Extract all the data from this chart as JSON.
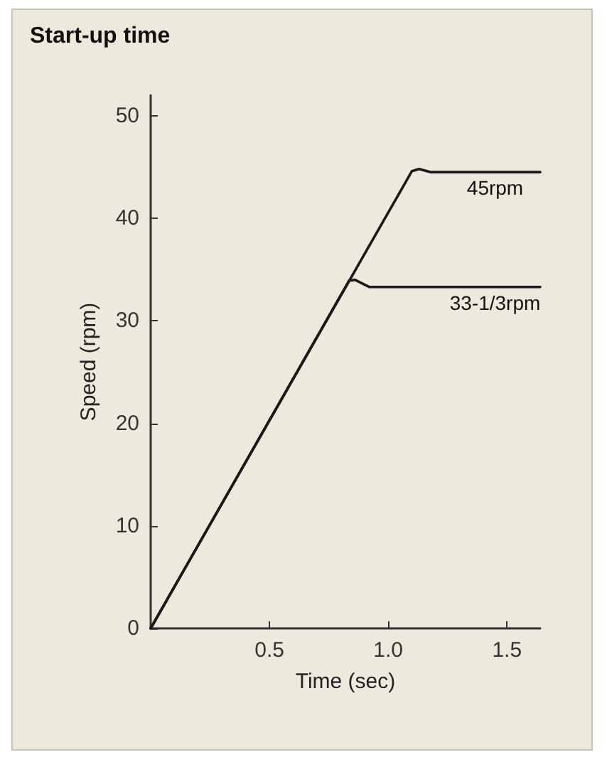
{
  "chart_data": {
    "type": "line",
    "title": "Start-up time",
    "xlabel": "Time (sec)",
    "ylabel": "Speed (rpm)",
    "xlim": [
      0,
      1.64
    ],
    "xticks": [
      0.5,
      {
        "value": 1,
        "label": "1.0"
      },
      1.5
    ],
    "ylim": [
      0,
      52
    ],
    "yticks": [
      0,
      10,
      20,
      30,
      40,
      50
    ],
    "series": [
      {
        "name": "45rpm",
        "color": "#1a1a1a",
        "x": [
          0,
          1.1,
          1.13,
          1.18,
          1.45,
          1.64
        ],
        "values": [
          0,
          44.6,
          44.8,
          44.5,
          44.5,
          44.5
        ]
      },
      {
        "name": "33-1/3rpm",
        "color": "#1a1a1a",
        "x": [
          0,
          0.835,
          0.86,
          0.92,
          1.45,
          1.64
        ],
        "values": [
          0,
          33.9,
          34.0,
          33.3,
          33.3,
          33.3
        ]
      }
    ],
    "grid": false,
    "legend": false,
    "marker": "none",
    "line_style": "solid"
  }
}
